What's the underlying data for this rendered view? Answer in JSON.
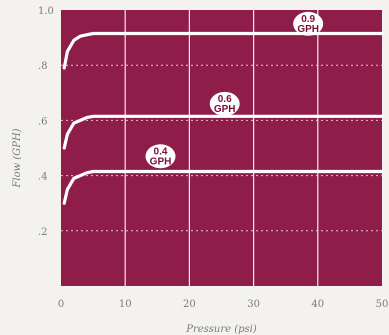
{
  "chart_data": {
    "type": "line",
    "xlabel": "Pressure (psi)",
    "ylabel": "Flow (GPH)",
    "xlim": [
      0,
      50
    ],
    "ylim": [
      0,
      1.0
    ],
    "x_ticks": [
      0,
      10,
      20,
      30,
      40,
      50
    ],
    "x_tick_labels": [
      "0",
      "10",
      "20",
      "30",
      "40",
      "50"
    ],
    "y_ticks": [
      0.2,
      0.4,
      0.6,
      0.8,
      1.0
    ],
    "y_tick_labels": [
      ".2",
      ".4",
      ".6",
      ".8",
      "1.0"
    ],
    "grid": true,
    "series": [
      {
        "name": "0.4 GPH",
        "label_lines": [
          "0.4",
          "GPH"
        ],
        "x": [
          0.5,
          1,
          2,
          3,
          4,
          5,
          50
        ],
        "values": [
          0.3,
          0.35,
          0.39,
          0.4,
          0.41,
          0.415,
          0.415
        ],
        "label_at": [
          15.5,
          0.47
        ]
      },
      {
        "name": "0.6 GPH",
        "label_lines": [
          "0.6",
          "GPH"
        ],
        "x": [
          0.5,
          1,
          2,
          3,
          4,
          5,
          50
        ],
        "values": [
          0.5,
          0.55,
          0.59,
          0.6,
          0.61,
          0.615,
          0.615
        ],
        "label_at": [
          25.5,
          0.66
        ]
      },
      {
        "name": "0.9 GPH",
        "label_lines": [
          "0.9",
          "GPH"
        ],
        "x": [
          0.5,
          1,
          2,
          3,
          4,
          5,
          50
        ],
        "values": [
          0.79,
          0.85,
          0.89,
          0.905,
          0.91,
          0.915,
          0.915
        ],
        "label_at": [
          38.5,
          0.95
        ]
      }
    ],
    "colors": {
      "plot_background": "#8e1d4a",
      "curve": "#ffffff",
      "gridline": "#ffffff",
      "badge_fill": "#ffffff",
      "badge_text": "#7a1138",
      "axis_text": "#7a7a7a"
    }
  }
}
